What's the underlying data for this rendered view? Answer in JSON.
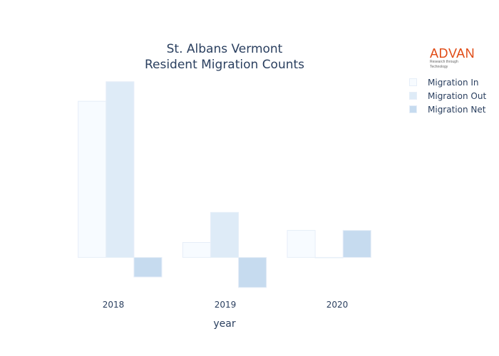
{
  "chart_data": {
    "type": "bar",
    "title_line1": "St. Albans Vermont",
    "title_line2": "Resident Migration Counts",
    "xlabel": "year",
    "ylabel": "",
    "categories": [
      "2018",
      "2019",
      "2020"
    ],
    "series": [
      {
        "name": "Migration In",
        "color": "#f7fbff",
        "values": [
          52,
          5,
          9
        ]
      },
      {
        "name": "Migration Out",
        "color": "#deebf7",
        "values": [
          58.5,
          15,
          0
        ]
      },
      {
        "name": "Migration Net",
        "color": "#c6dbef",
        "values": [
          -6.5,
          -10,
          9
        ]
      }
    ],
    "ylim": [
      -11,
      62
    ],
    "grid": false,
    "legend_position": "top-right"
  },
  "logo": {
    "text": "ADVAN",
    "tagline": "Research through Technology"
  }
}
